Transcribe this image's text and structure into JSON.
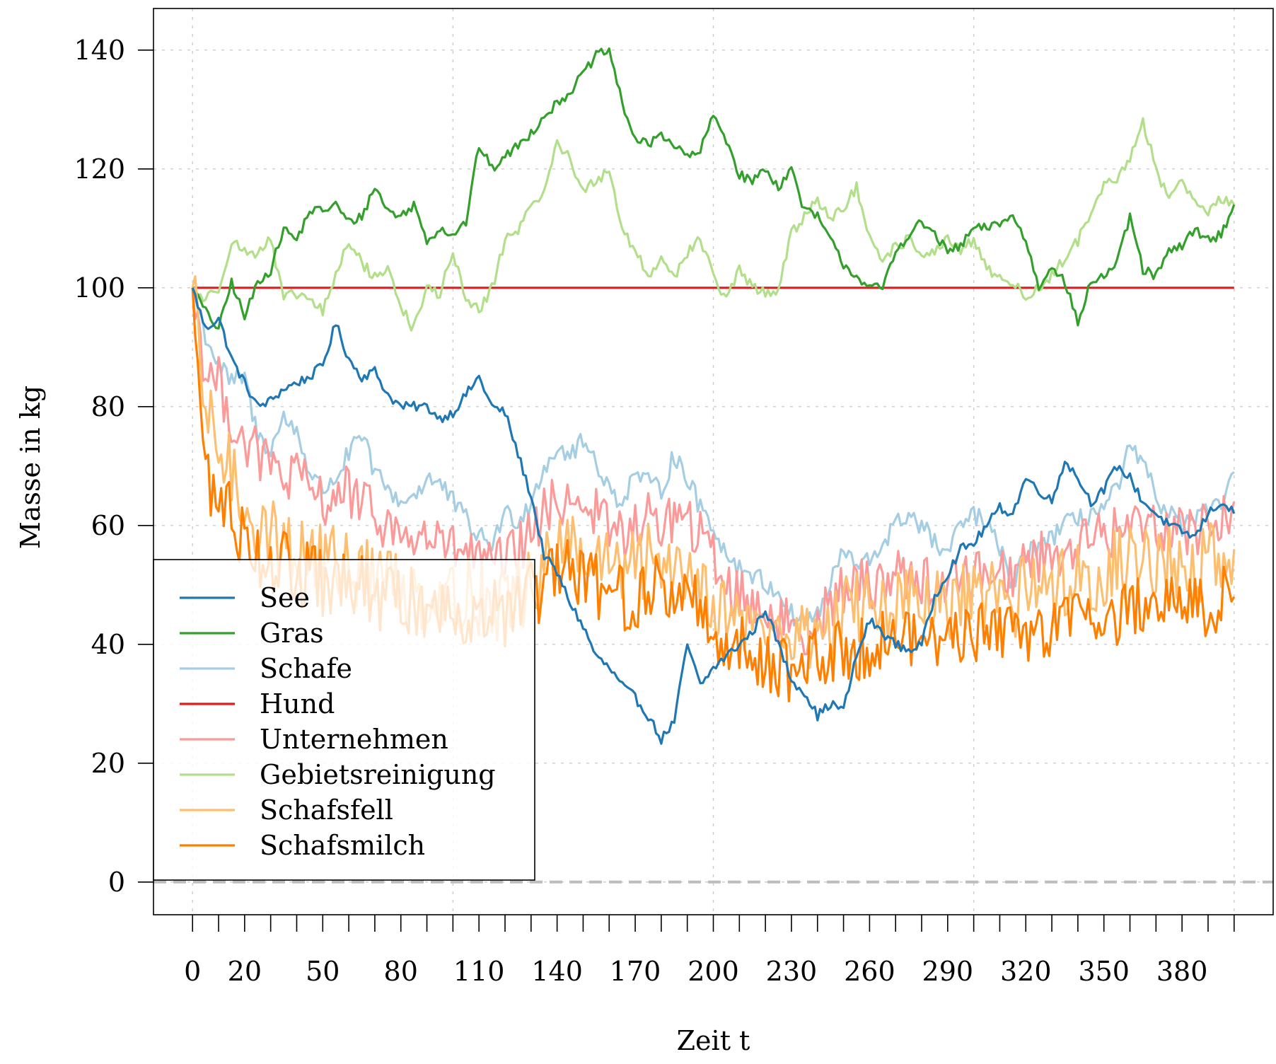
{
  "chart_data": {
    "type": "line",
    "title": "",
    "xlabel": "Zeit t",
    "ylabel": "Masse in kg",
    "xlim": [
      -15,
      415
    ],
    "ylim": [
      -5.5,
      147
    ],
    "x_tick_labels": [
      0,
      20,
      50,
      80,
      110,
      140,
      170,
      200,
      230,
      260,
      290,
      320,
      350,
      380
    ],
    "x_minor_ticks": [
      0,
      10,
      20,
      30,
      40,
      50,
      60,
      70,
      80,
      90,
      100,
      110,
      120,
      130,
      140,
      150,
      160,
      170,
      180,
      190,
      200,
      210,
      220,
      230,
      240,
      250,
      260,
      270,
      280,
      290,
      300,
      310,
      320,
      330,
      340,
      350,
      360,
      370,
      380,
      390,
      400
    ],
    "y_ticks": [
      0,
      20,
      40,
      60,
      80,
      100,
      120,
      140
    ],
    "x_grid": [
      0,
      100,
      200,
      300,
      400
    ],
    "grid": true,
    "zero_line": {
      "y": 0,
      "color": "#bdbdbd",
      "style": "dashed"
    },
    "legend": {
      "position": "bottom-left",
      "entries": [
        "See",
        "Gras",
        "Schafe",
        "Hund",
        "Unternehmen",
        "Gebietsreinigung",
        "Schafsfell",
        "Schafsmilch"
      ]
    },
    "series": [
      {
        "name": "See",
        "color": "#1f78b4",
        "noise": 0.8,
        "x": [
          0,
          5,
          10,
          15,
          20,
          25,
          30,
          35,
          40,
          45,
          50,
          55,
          60,
          65,
          70,
          75,
          80,
          85,
          90,
          95,
          100,
          105,
          110,
          115,
          120,
          125,
          130,
          135,
          140,
          145,
          150,
          155,
          160,
          165,
          170,
          175,
          180,
          185,
          190,
          195,
          200,
          205,
          210,
          215,
          220,
          225,
          230,
          235,
          240,
          245,
          250,
          255,
          260,
          265,
          270,
          275,
          280,
          285,
          290,
          295,
          300,
          305,
          310,
          315,
          320,
          325,
          330,
          335,
          340,
          345,
          350,
          355,
          360,
          365,
          370,
          375,
          380,
          385,
          390,
          395,
          400
        ],
        "y": [
          100,
          93,
          95,
          88,
          84,
          80,
          81,
          83,
          84,
          85,
          87,
          94,
          88,
          85,
          86,
          82,
          80,
          80,
          80,
          78,
          79,
          82,
          85,
          80,
          79,
          72,
          65,
          55,
          52,
          47,
          43,
          38,
          36,
          33,
          31,
          28,
          24,
          27,
          40,
          33,
          36,
          38,
          40,
          42,
          46,
          40,
          34,
          32,
          28,
          30,
          29,
          38,
          44,
          42,
          40,
          39,
          40,
          48,
          52,
          56,
          57,
          60,
          63,
          62,
          68,
          66,
          64,
          71,
          68,
          64,
          66,
          70,
          68,
          64,
          62,
          60,
          59,
          58,
          62,
          64,
          62
        ]
      },
      {
        "name": "Gras",
        "color": "#33a02c",
        "noise": 0.8,
        "x": [
          0,
          5,
          10,
          15,
          20,
          25,
          30,
          35,
          40,
          45,
          50,
          55,
          60,
          65,
          70,
          75,
          80,
          85,
          90,
          95,
          100,
          105,
          110,
          115,
          120,
          125,
          130,
          135,
          140,
          145,
          150,
          155,
          160,
          165,
          170,
          175,
          180,
          185,
          190,
          195,
          200,
          205,
          210,
          215,
          220,
          225,
          230,
          235,
          240,
          245,
          250,
          255,
          260,
          265,
          270,
          275,
          280,
          285,
          290,
          295,
          300,
          305,
          310,
          315,
          320,
          325,
          330,
          335,
          340,
          345,
          350,
          355,
          360,
          365,
          370,
          375,
          380,
          385,
          390,
          395,
          400
        ],
        "y": [
          100,
          96,
          93,
          101,
          95,
          101,
          103,
          110,
          108,
          113,
          113,
          114,
          111,
          112,
          117,
          113,
          112,
          114,
          108,
          110,
          109,
          111,
          124,
          120,
          122,
          124,
          126,
          129,
          131,
          133,
          136,
          139,
          140,
          131,
          125,
          124,
          126,
          124,
          122,
          123,
          129,
          125,
          119,
          118,
          120,
          117,
          120,
          113,
          112,
          108,
          104,
          102,
          100,
          100,
          106,
          109,
          111,
          109,
          106,
          107,
          110,
          110,
          111,
          112,
          108,
          100,
          104,
          101,
          94,
          101,
          102,
          104,
          112,
          103,
          102,
          106,
          107,
          110,
          108,
          109,
          114
        ]
      },
      {
        "name": "Schafe",
        "color": "#a6cee3",
        "noise": 1.8,
        "x": [
          0,
          5,
          10,
          15,
          20,
          25,
          30,
          35,
          40,
          45,
          50,
          55,
          60,
          65,
          70,
          75,
          80,
          85,
          90,
          95,
          100,
          105,
          110,
          115,
          120,
          125,
          130,
          135,
          140,
          145,
          150,
          155,
          160,
          165,
          170,
          175,
          180,
          185,
          190,
          195,
          200,
          205,
          210,
          215,
          220,
          225,
          230,
          235,
          240,
          245,
          250,
          255,
          260,
          265,
          270,
          275,
          280,
          285,
          290,
          295,
          300,
          305,
          310,
          315,
          320,
          325,
          330,
          335,
          340,
          345,
          350,
          355,
          360,
          365,
          370,
          375,
          380,
          385,
          390,
          395,
          400
        ],
        "y": [
          100,
          92,
          87,
          84,
          85,
          75,
          73,
          78,
          76,
          69,
          66,
          68,
          72,
          75,
          69,
          66,
          64,
          65,
          68,
          67,
          64,
          61,
          58,
          57,
          62,
          61,
          64,
          70,
          73,
          72,
          74,
          71,
          66,
          64,
          69,
          67,
          66,
          72,
          68,
          63,
          60,
          55,
          53,
          52,
          50,
          49,
          45,
          44,
          45,
          50,
          56,
          53,
          54,
          57,
          60,
          62,
          60,
          57,
          55,
          60,
          62,
          60,
          56,
          50,
          55,
          57,
          58,
          60,
          61,
          62,
          63,
          66,
          73,
          70,
          65,
          62,
          60,
          61,
          62,
          64,
          69
        ]
      },
      {
        "name": "Hund",
        "color": "#e31a1c",
        "noise": 0,
        "x": [
          0,
          400
        ],
        "y": [
          100,
          100
        ]
      },
      {
        "name": "Unternehmen",
        "color": "#fb9a99",
        "noise": 4.5,
        "x": [
          0,
          5,
          10,
          15,
          20,
          25,
          30,
          35,
          40,
          45,
          50,
          55,
          60,
          65,
          70,
          75,
          80,
          85,
          90,
          95,
          100,
          105,
          110,
          115,
          120,
          125,
          130,
          135,
          140,
          145,
          150,
          155,
          160,
          165,
          170,
          175,
          180,
          185,
          190,
          195,
          200,
          205,
          210,
          215,
          220,
          225,
          230,
          235,
          240,
          245,
          250,
          255,
          260,
          265,
          270,
          275,
          280,
          285,
          290,
          295,
          300,
          305,
          310,
          315,
          320,
          325,
          330,
          335,
          340,
          345,
          350,
          355,
          360,
          365,
          370,
          375,
          380,
          385,
          390,
          395,
          400
        ],
        "y": [
          100,
          86,
          84,
          78,
          74,
          72,
          70,
          68,
          68,
          66,
          64,
          65,
          66,
          63,
          62,
          60,
          58,
          58,
          58,
          57,
          56,
          56,
          54,
          53,
          54,
          56,
          58,
          62,
          64,
          65,
          64,
          62,
          60,
          58,
          60,
          61,
          60,
          62,
          60,
          58,
          55,
          50,
          48,
          47,
          46,
          44,
          43,
          42,
          44,
          47,
          49,
          50,
          50,
          51,
          52,
          52,
          51,
          50,
          50,
          51,
          52,
          52,
          53,
          52,
          54,
          55,
          55,
          56,
          57,
          58,
          58,
          59,
          60,
          61,
          60,
          60,
          60,
          59,
          60,
          61,
          64
        ]
      },
      {
        "name": "Gebietsreinigung",
        "color": "#b2df8a",
        "noise": 1.0,
        "x": [
          0,
          5,
          10,
          15,
          20,
          25,
          30,
          35,
          40,
          45,
          50,
          55,
          60,
          65,
          70,
          75,
          80,
          85,
          90,
          95,
          100,
          105,
          110,
          115,
          120,
          125,
          130,
          135,
          140,
          145,
          150,
          155,
          160,
          165,
          170,
          175,
          180,
          185,
          190,
          195,
          200,
          205,
          210,
          215,
          220,
          225,
          230,
          235,
          240,
          245,
          250,
          255,
          260,
          265,
          270,
          275,
          280,
          285,
          290,
          295,
          300,
          305,
          310,
          315,
          320,
          325,
          330,
          335,
          340,
          345,
          350,
          355,
          360,
          365,
          370,
          375,
          380,
          385,
          390,
          395,
          400
        ],
        "y": [
          100,
          98,
          100,
          108,
          106,
          106,
          108,
          98,
          99,
          98,
          96,
          102,
          108,
          104,
          102,
          103,
          97,
          93,
          100,
          99,
          106,
          98,
          96,
          100,
          108,
          110,
          113,
          117,
          124,
          122,
          116,
          118,
          120,
          110,
          106,
          102,
          105,
          102,
          106,
          108,
          102,
          98,
          103,
          100,
          99,
          100,
          109,
          112,
          115,
          112,
          113,
          117,
          108,
          104,
          107,
          108,
          106,
          106,
          108,
          106,
          108,
          103,
          102,
          101,
          98,
          100,
          102,
          105,
          108,
          112,
          117,
          118,
          122,
          128,
          120,
          115,
          118,
          115,
          113,
          115,
          114
        ]
      },
      {
        "name": "Schafsfell",
        "color": "#fdbf6f",
        "noise": 6.5,
        "x": [
          0,
          5,
          10,
          15,
          20,
          25,
          30,
          35,
          40,
          45,
          50,
          55,
          60,
          65,
          70,
          75,
          80,
          85,
          90,
          95,
          100,
          105,
          110,
          115,
          120,
          125,
          130,
          135,
          140,
          145,
          150,
          155,
          160,
          165,
          170,
          175,
          180,
          185,
          190,
          195,
          200,
          205,
          210,
          215,
          220,
          225,
          230,
          235,
          240,
          245,
          250,
          255,
          260,
          265,
          270,
          275,
          280,
          285,
          290,
          295,
          300,
          305,
          310,
          315,
          320,
          325,
          330,
          335,
          340,
          345,
          350,
          355,
          360,
          365,
          370,
          375,
          380,
          385,
          390,
          395,
          400
        ],
        "y": [
          100,
          78,
          74,
          68,
          64,
          60,
          58,
          57,
          56,
          55,
          54,
          54,
          53,
          52,
          52,
          51,
          50,
          49,
          49,
          48,
          48,
          48,
          48,
          47,
          47,
          48,
          50,
          53,
          55,
          56,
          55,
          54,
          53,
          52,
          53,
          54,
          54,
          54,
          53,
          51,
          48,
          45,
          44,
          43,
          43,
          42,
          41,
          41,
          42,
          44,
          45,
          46,
          46,
          47,
          47,
          47,
          46,
          46,
          46,
          47,
          47,
          48,
          48,
          47,
          49,
          50,
          50,
          51,
          51,
          52,
          52,
          53,
          54,
          55,
          54,
          54,
          54,
          53,
          54,
          54,
          56
        ]
      },
      {
        "name": "Schafsmilch",
        "color": "#ff7f00",
        "noise": 6.0,
        "x": [
          0,
          5,
          10,
          15,
          20,
          25,
          30,
          35,
          40,
          45,
          50,
          55,
          60,
          65,
          70,
          75,
          80,
          85,
          90,
          95,
          100,
          105,
          110,
          115,
          120,
          125,
          130,
          135,
          140,
          145,
          150,
          155,
          160,
          165,
          170,
          175,
          180,
          185,
          190,
          195,
          200,
          205,
          210,
          215,
          220,
          225,
          230,
          235,
          240,
          245,
          250,
          255,
          260,
          265,
          270,
          275,
          280,
          285,
          290,
          295,
          300,
          305,
          310,
          315,
          320,
          325,
          330,
          335,
          340,
          345,
          350,
          355,
          360,
          365,
          370,
          375,
          380,
          385,
          390,
          395,
          400
        ],
        "y": [
          100,
          68,
          64,
          62,
          58,
          56,
          54,
          53,
          52,
          51,
          50,
          50,
          49,
          49,
          48,
          48,
          47,
          47,
          47,
          46,
          46,
          46,
          46,
          45,
          45,
          46,
          48,
          50,
          51,
          52,
          51,
          50,
          49,
          48,
          48,
          49,
          49,
          49,
          48,
          46,
          43,
          40,
          39,
          38,
          38,
          37,
          36,
          36,
          37,
          38,
          39,
          40,
          40,
          41,
          41,
          41,
          41,
          41,
          41,
          42,
          42,
          42,
          42,
          42,
          43,
          43,
          44,
          44,
          44,
          45,
          45,
          45,
          46,
          47,
          47,
          47,
          47,
          47,
          47,
          48,
          48
        ]
      }
    ]
  }
}
